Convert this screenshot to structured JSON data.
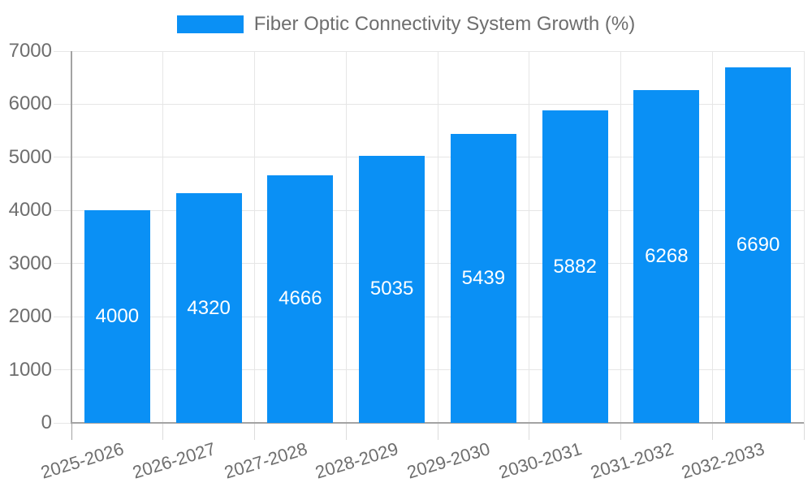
{
  "chart_data": {
    "type": "bar",
    "title": "Fiber Optic Connectivity System Growth (%)",
    "legend_position": "top-center",
    "categories": [
      "2025-2026",
      "2026-2027",
      "2027-2028",
      "2028-2029",
      "2029-2030",
      "2030-2031",
      "2031-2032",
      "2032-2033"
    ],
    "values": [
      4000,
      4320,
      4666,
      5035,
      5439,
      5882,
      6268,
      6690
    ],
    "value_labels": [
      "4000",
      "4320",
      "4666",
      "5035",
      "5439",
      "5882",
      "6268",
      "6690"
    ],
    "xlabel": "",
    "ylabel": "",
    "ylim": [
      0,
      7000
    ],
    "ytick_step": 1000,
    "y_tick_labels": [
      "0",
      "1000",
      "2000",
      "3000",
      "4000",
      "5000",
      "6000",
      "7000"
    ],
    "grid": true,
    "colors": {
      "bar": "#0a90f5",
      "value_label_text": "#ffffff",
      "axis_text": "#6e6e6e",
      "legend_text": "#6e6e6e",
      "gridline": "#e6e6e6",
      "tick": "#dcdcdc",
      "axis_line": "#a3a3a3",
      "background": "#ffffff"
    }
  }
}
